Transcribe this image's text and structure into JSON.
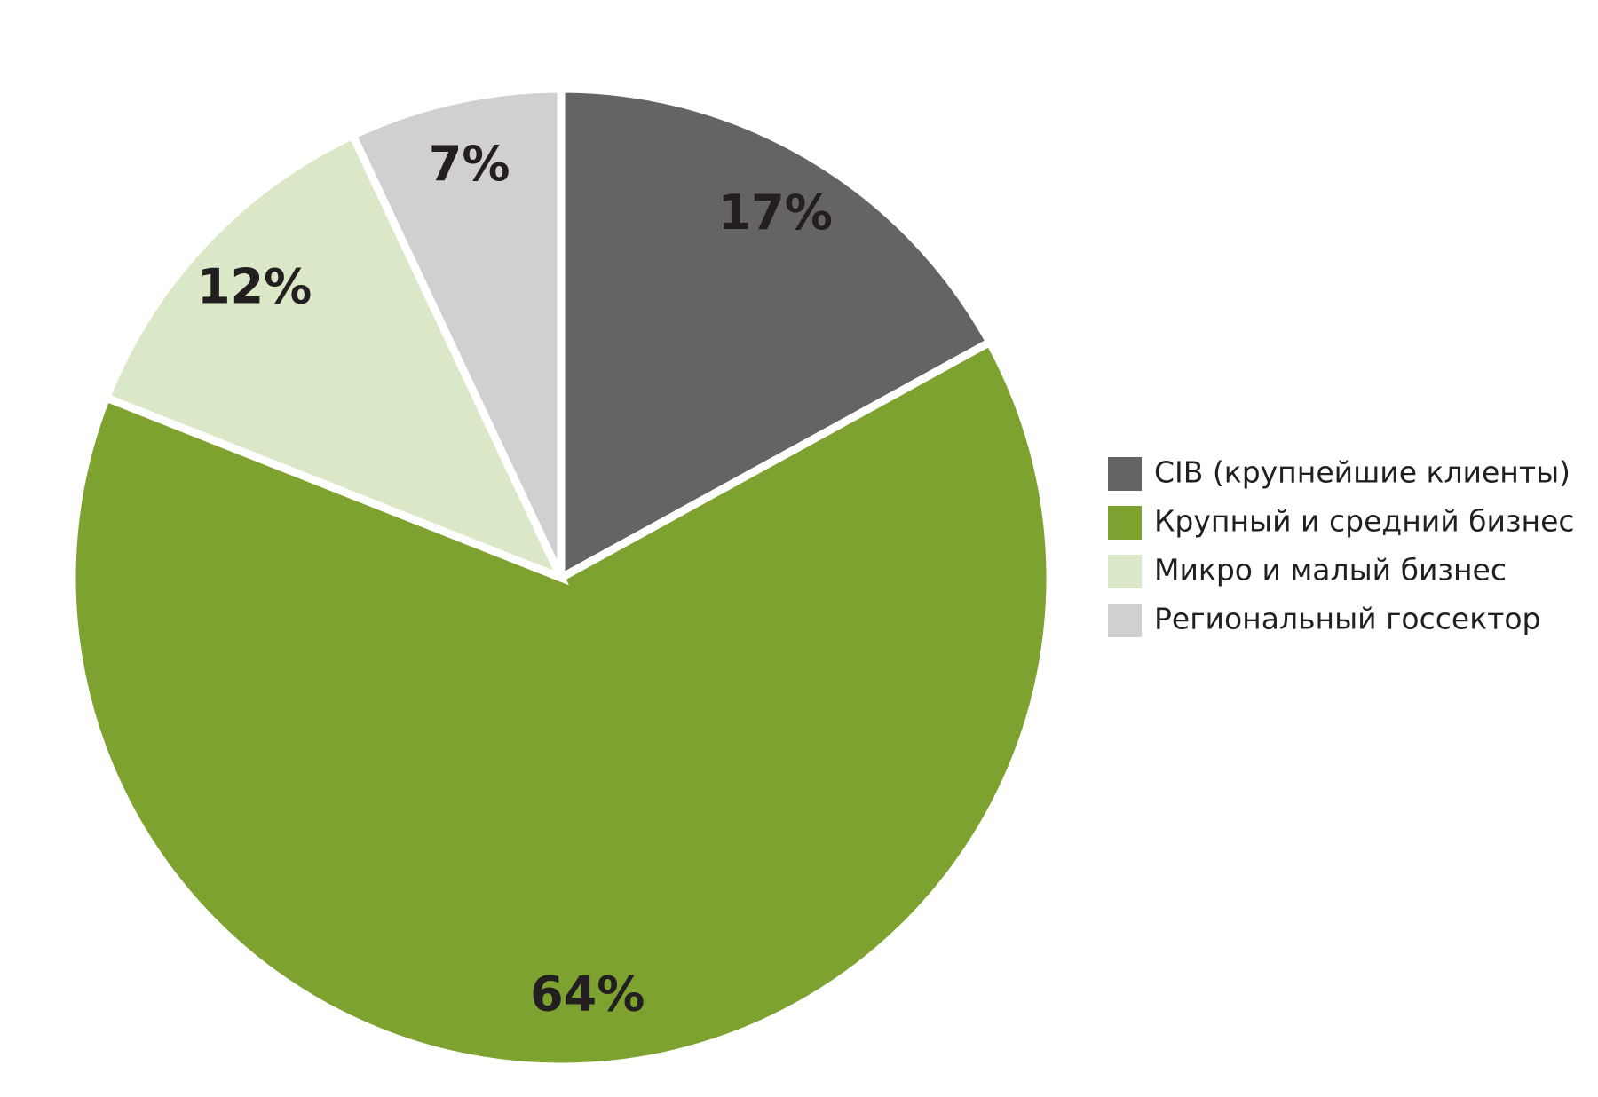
{
  "chart_data": {
    "type": "pie",
    "categories": [
      "CIB (крупнейшие клиенты)",
      "Крупный и средний бизнес",
      "Микро и малый бизнес",
      "Региональный госсектор"
    ],
    "values": [
      17,
      64,
      12,
      7
    ],
    "value_labels": [
      "17%",
      "64%",
      "12%",
      "7%"
    ],
    "colors": [
      "#656364",
      "#7ea230",
      "#dbe8c7",
      "#d1cfd2"
    ],
    "legend": "right"
  }
}
